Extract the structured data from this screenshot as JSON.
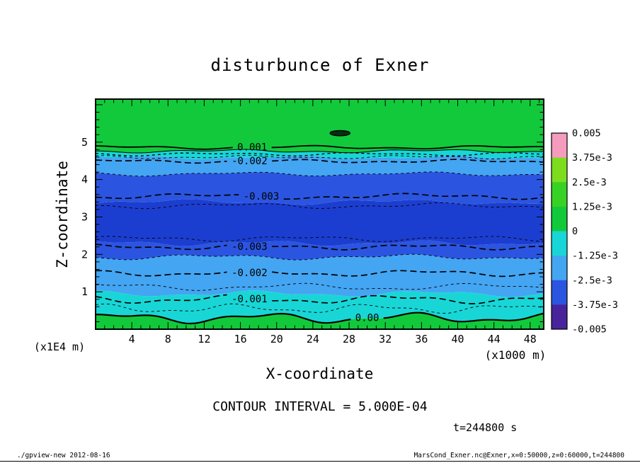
{
  "labels": {
    "title": "disturbunce of Exner",
    "x_axis": "X-coordinate",
    "y_axis": "Z-coordinate",
    "y_unit": "(x1E4 m)",
    "x_unit": "(x1000 m)",
    "contour_interval": "CONTOUR INTERVAL = 5.000E-04",
    "time": "t=244800 s"
  },
  "footer": {
    "left": "./gpview-new  2012-08-16",
    "right": "MarsCond_Exner.nc@Exner,x=0:50000,z=0:60000,t=244800"
  },
  "colorbar": {
    "labels": [
      "0.005",
      "3.75e-3",
      "2.5e-3",
      "1.25e-3",
      "0",
      "-1.25e-3",
      "-2.5e-3",
      "-3.75e-3",
      "-0.005"
    ],
    "colors": [
      "#F59BBE",
      "#7EDC1E",
      "#38D224",
      "#12C93C",
      "#19D6D6",
      "#44A5F2",
      "#2B55E0",
      "#47249B"
    ]
  },
  "chart_data": {
    "type": "contour",
    "title": "disturbunce of Exner",
    "xlabel": "X-coordinate (x1000 m)",
    "ylabel": "Z-coordinate (x1E4 m)",
    "x_range": [
      0,
      49.5
    ],
    "z_range": [
      0,
      6.15
    ],
    "x_ticks": [
      4,
      8,
      12,
      16,
      20,
      24,
      28,
      32,
      36,
      40,
      44,
      48
    ],
    "z_ticks": [
      1,
      2,
      3,
      4,
      5
    ],
    "contour_interval": 0.0005,
    "time_s": 244800,
    "level_range": [
      -0.005,
      0.005
    ],
    "fill_colors": [
      "#12C93C",
      "#19D6D6",
      "#44A5F2",
      "#2B55E0",
      "#1C3ED0",
      "#2B55E0",
      "#44A5F2",
      "#19D6D6",
      "#12C93C"
    ],
    "fill_boundaries": [
      {
        "z": 0.3,
        "wave": [
          0.1,
          16,
          0.5,
          0.05,
          7.3,
          2.1
        ]
      },
      {
        "z": 0.95,
        "wave": [
          0.06,
          19,
          2.0,
          0.03,
          8.1,
          0.7
        ]
      },
      {
        "z": 1.93,
        "wave": [
          0.05,
          21,
          4.1,
          0.03,
          9.0,
          1.9
        ]
      },
      {
        "z": 2.3,
        "wave": [
          0.05,
          17,
          1.1,
          0.03,
          7.7,
          3.0
        ]
      },
      {
        "z": 3.4,
        "wave": [
          0.05,
          23,
          5.2,
          0.03,
          8.6,
          0.2
        ]
      },
      {
        "z": 4.15,
        "wave": [
          0.04,
          20,
          2.9,
          0.02,
          9.4,
          1.4
        ]
      },
      {
        "z": 4.59,
        "wave": [
          0.03,
          18,
          0.3,
          0.02,
          8.2,
          2.6
        ]
      },
      {
        "z": 4.76,
        "wave": [
          0.03,
          22,
          3.6,
          0.02,
          7.9,
          0.9
        ]
      }
    ],
    "contours": [
      {
        "z": 0.3,
        "level": 0.0,
        "label": "0.00",
        "label_x": 30.0,
        "style": "solid",
        "w": 2.2,
        "wave": [
          0.1,
          16,
          0.5,
          0.05,
          7.3,
          2.1
        ]
      },
      {
        "z": 0.55,
        "level": -0.0005,
        "style": "dashed",
        "w": 0.9,
        "wave": [
          0.09,
          15,
          1.4,
          0.04,
          6.8,
          0.3
        ]
      },
      {
        "z": 0.8,
        "level": -0.001,
        "label": "-0.001",
        "label_x": 17.0,
        "style": "dashed",
        "w": 1.7,
        "wave": [
          0.08,
          18,
          2.7,
          0.04,
          7.6,
          1.8
        ]
      },
      {
        "z": 1.13,
        "level": -0.0015,
        "style": "dashed",
        "w": 0.9,
        "wave": [
          0.07,
          20,
          0.9,
          0.03,
          8.4,
          2.9
        ]
      },
      {
        "z": 1.5,
        "level": -0.002,
        "label": "-0.002",
        "label_x": 17.0,
        "style": "dashed",
        "w": 1.7,
        "wave": [
          0.06,
          19,
          2.2,
          0.03,
          7.9,
          0.6
        ]
      },
      {
        "z": 1.93,
        "level": -0.0025,
        "style": "dashed",
        "w": 0.9,
        "wave": [
          0.05,
          21,
          4.1,
          0.03,
          9.0,
          1.9
        ]
      },
      {
        "z": 2.2,
        "level": -0.003,
        "label": "-0.003",
        "label_x": 17.0,
        "style": "dashed",
        "w": 1.7,
        "wave": [
          0.05,
          18,
          1.6,
          0.03,
          8.2,
          2.4
        ]
      },
      {
        "z": 2.42,
        "level": -0.0035,
        "style": "dashed",
        "w": 0.9,
        "wave": [
          0.05,
          19,
          0.4,
          0.03,
          8.8,
          1.1
        ]
      },
      {
        "z": 3.3,
        "level": -0.0035,
        "style": "dashed",
        "w": 0.9,
        "wave": [
          0.05,
          22,
          3.4,
          0.03,
          9.3,
          0.8
        ]
      },
      {
        "z": 3.55,
        "level": -0.003,
        "label": "-0.003",
        "label_x": 18.3,
        "style": "dashed",
        "w": 1.7,
        "wave": [
          0.05,
          24,
          4.9,
          0.03,
          8.6,
          2.0
        ]
      },
      {
        "z": 4.15,
        "level": -0.0025,
        "style": "dashed",
        "w": 0.9,
        "wave": [
          0.04,
          20,
          2.9,
          0.02,
          9.4,
          1.4
        ]
      },
      {
        "z": 4.49,
        "level": -0.002,
        "label": "-0.002",
        "label_x": 17.0,
        "style": "dashed",
        "w": 1.7,
        "wave": [
          0.03,
          19,
          0.8,
          0.02,
          8.2,
          2.6
        ]
      },
      {
        "z": 4.6,
        "level": -0.0015,
        "style": "dashed",
        "w": 0.9,
        "wave": [
          0.03,
          18,
          2.0,
          0.02,
          7.7,
          0.4
        ]
      },
      {
        "z": 4.68,
        "level": -0.001,
        "style": "dashed",
        "w": 1.3,
        "wave": [
          0.03,
          17,
          3.1,
          0.02,
          8.9,
          1.6
        ]
      },
      {
        "z": 4.76,
        "level": 0.0,
        "style": "solid",
        "w": 1.0,
        "wave": [
          0.03,
          22,
          3.6,
          0.02,
          7.9,
          0.9
        ]
      },
      {
        "z": 4.86,
        "level": 0.001,
        "label": "0.001",
        "label_x": 17.3,
        "style": "solid",
        "w": 1.8,
        "wave": [
          0.03,
          21,
          1.0,
          0.02,
          8.4,
          2.2
        ]
      }
    ],
    "blob": {
      "x": 27.0,
      "z": 5.24,
      "rx": 1.1,
      "rz": 0.07,
      "color": "#04300F"
    }
  }
}
